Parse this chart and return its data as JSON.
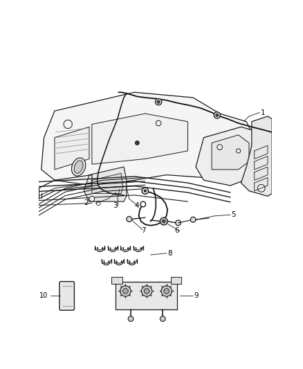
{
  "bg_color": "#ffffff",
  "line_color": "#1a1a1a",
  "fig_width": 4.38,
  "fig_height": 5.33,
  "dpi": 100,
  "label_fontsize": 7.5,
  "label_color": "#000000"
}
